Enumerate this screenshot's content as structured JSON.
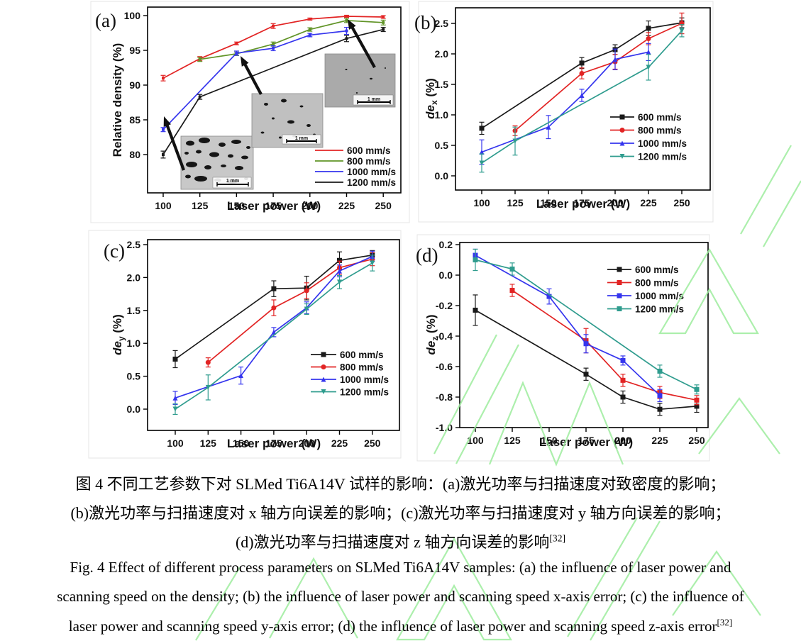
{
  "figure": {
    "captions_zh": [
      "图 4 不同工艺参数下对 SLMed Ti6A14V 试样的影响：(a)激光功率与扫描速度对致密度的影响；",
      "(b)激光功率与扫描速度对 x 轴方向误差的影响；(c)激光功率与扫描速度对 y 轴方向误差的影响；",
      "(d)激光功率与扫描速度对 z 轴方向误差的影响"
    ],
    "captions_en": [
      "Fig. 4 Effect of different process parameters on SLMed Ti6A14V samples: (a) the influence of laser power and",
      "scanning speed on the density; (b) the influence of laser power and scanning speed x-axis error; (c) the influence of",
      "laser power and scanning speed y-axis error; (d) the influence of laser power and scanning speed z-axis error"
    ],
    "caption_ref": "[32]"
  },
  "chart_data": [
    {
      "id": "a",
      "panel_label": "(a)",
      "type": "line",
      "xlabel": "Laser power (W)",
      "ylabel": "Relative density (%)",
      "xlim": [
        89,
        262
      ],
      "ylim": [
        74.5,
        101.2
      ],
      "xticks": [
        100,
        125,
        150,
        175,
        200,
        225,
        250
      ],
      "xtick_labels": [
        "100",
        "125",
        "150",
        "175",
        "200",
        "225",
        "250"
      ],
      "yticks": [
        80,
        85,
        90,
        95,
        100
      ],
      "ytick_labels": [
        "80",
        "85",
        "90",
        "95",
        "100"
      ],
      "legend_position": "bottom-right",
      "grid": false,
      "insets": [
        {
          "scale_label": "1 mm"
        },
        {
          "scale_label": "1 mm"
        },
        {
          "scale_label": "1 mm"
        }
      ],
      "series": [
        {
          "name": "600 mm/s",
          "color": "#e22424",
          "marker": "square",
          "x": [
            100,
            125,
            150,
            175,
            200,
            225,
            250
          ],
          "y": [
            91.0,
            93.8,
            96.0,
            98.5,
            99.5,
            99.9,
            99.8
          ],
          "err": [
            0.4,
            0.3,
            0.2,
            0.35,
            0.15,
            0.15,
            0.2
          ]
        },
        {
          "name": "800 mm/s",
          "color": "#619427",
          "marker": "square",
          "x": [
            125,
            150,
            175,
            200,
            225,
            250
          ],
          "y": [
            93.7,
            94.5,
            95.9,
            98.0,
            99.3,
            99.0
          ],
          "err": [
            0.3,
            0.25,
            0.3,
            0.25,
            0.3,
            0.35
          ]
        },
        {
          "name": "1000 mm/s",
          "color": "#3535ee",
          "marker": "square",
          "x": [
            100,
            150,
            175,
            200,
            225
          ],
          "y": [
            83.6,
            94.6,
            95.3,
            97.2,
            97.8
          ],
          "err": [
            0.3,
            0.3,
            0.35,
            0.25,
            0.5
          ]
        },
        {
          "name": "1200 mm/s",
          "color": "#1a1a1a",
          "marker": "square",
          "x": [
            100,
            125,
            225,
            250
          ],
          "y": [
            80.0,
            88.3,
            96.7,
            98.0
          ],
          "err": [
            0.5,
            0.35,
            0.45,
            0.3
          ]
        }
      ]
    },
    {
      "id": "b",
      "panel_label": "(b)",
      "type": "line",
      "xlabel": "Laser power (W)",
      "ylabel": {
        "italic": "de",
        "sub": "x",
        "rest": " (%)"
      },
      "xlim": [
        80,
        271
      ],
      "ylim": [
        -0.23,
        2.76
      ],
      "xticks": [
        100,
        125,
        150,
        175,
        200,
        225,
        250
      ],
      "xtick_labels": [
        "100",
        "125",
        "150",
        "175",
        "200",
        "225",
        "250"
      ],
      "yticks": [
        0.0,
        0.5,
        1.0,
        1.5,
        2.0,
        2.5
      ],
      "ytick_labels": [
        "0.0",
        "0.5",
        "1.0",
        "1.5",
        "2.0",
        "2.5"
      ],
      "legend_position": "middle-right",
      "grid": false,
      "series": [
        {
          "name": "600 mm/s",
          "color": "#1a1a1a",
          "marker": "square",
          "x": [
            100,
            175,
            200,
            225,
            250
          ],
          "y": [
            0.78,
            1.85,
            2.07,
            2.42,
            2.51
          ],
          "err": [
            0.1,
            0.09,
            0.08,
            0.12,
            0.08
          ]
        },
        {
          "name": "800 mm/s",
          "color": "#e22424",
          "marker": "circle",
          "x": [
            125,
            175,
            200,
            225,
            250
          ],
          "y": [
            0.74,
            1.68,
            1.87,
            2.25,
            2.5
          ],
          "err": [
            0.08,
            0.09,
            0.12,
            0.1,
            0.17
          ]
        },
        {
          "name": "1000 mm/s",
          "color": "#3535ee",
          "marker": "triangle-up",
          "x": [
            100,
            150,
            175,
            200,
            225
          ],
          "y": [
            0.39,
            0.8,
            1.32,
            1.91,
            2.03
          ],
          "err": [
            0.2,
            0.19,
            0.1,
            0.17,
            0.14
          ]
        },
        {
          "name": "1200 mm/s",
          "color": "#2f9c8e",
          "marker": "triangle-down",
          "x": [
            100,
            125,
            225,
            250
          ],
          "y": [
            0.21,
            0.57,
            1.78,
            2.38
          ],
          "err": [
            0.15,
            0.23,
            0.21,
            0.1
          ]
        }
      ]
    },
    {
      "id": "c",
      "panel_label": "(c)",
      "type": "line",
      "xlabel": "Laser power (W)",
      "ylabel": {
        "italic": "de",
        "sub": "y",
        "rest": " (%)"
      },
      "xlim": [
        79,
        271
      ],
      "ylim": [
        -0.32,
        2.58
      ],
      "xticks": [
        100,
        125,
        150,
        175,
        200,
        225,
        250
      ],
      "xtick_labels": [
        "100",
        "125",
        "150",
        "175",
        "200",
        "225",
        "250"
      ],
      "yticks": [
        0.0,
        0.5,
        1.0,
        1.5,
        2.0,
        2.5
      ],
      "ytick_labels": [
        "0.0",
        "0.5",
        "1.0",
        "1.5",
        "2.0",
        "2.5"
      ],
      "legend_position": "middle-right",
      "grid": false,
      "series": [
        {
          "name": "600 mm/s",
          "color": "#1a1a1a",
          "marker": "square",
          "x": [
            100,
            175,
            200,
            225,
            250
          ],
          "y": [
            0.76,
            1.83,
            1.84,
            2.26,
            2.34
          ],
          "err": [
            0.13,
            0.12,
            0.18,
            0.13,
            0.07
          ]
        },
        {
          "name": "800 mm/s",
          "color": "#e22424",
          "marker": "circle",
          "x": [
            125,
            175,
            200,
            225,
            250
          ],
          "y": [
            0.71,
            1.54,
            1.8,
            2.15,
            2.28
          ],
          "err": [
            0.07,
            0.12,
            0.12,
            0.1,
            0.1
          ]
        },
        {
          "name": "1000 mm/s",
          "color": "#3535ee",
          "marker": "triangle-up",
          "x": [
            100,
            150,
            175,
            200,
            225,
            250
          ],
          "y": [
            0.17,
            0.51,
            1.17,
            1.54,
            2.1,
            2.32
          ],
          "err": [
            0.1,
            0.13,
            0.07,
            0.09,
            0.09,
            0.08
          ]
        },
        {
          "name": "1200 mm/s",
          "color": "#2f9c8e",
          "marker": "triangle-down",
          "x": [
            100,
            125,
            200,
            225,
            250
          ],
          "y": [
            0.0,
            0.33,
            1.52,
            1.93,
            2.22
          ],
          "err": [
            0.08,
            0.19,
            0.08,
            0.1,
            0.12
          ]
        }
      ]
    },
    {
      "id": "d",
      "panel_label": "(d)",
      "type": "line",
      "xlabel": "Laser power (W)",
      "ylabel": {
        "italic": "de",
        "sub": "z",
        "rest": " (%)"
      },
      "xlim": [
        89,
        258
      ],
      "ylim": [
        -1.0,
        0.21
      ],
      "xticks": [
        100,
        125,
        150,
        175,
        200,
        225,
        250
      ],
      "xtick_labels": [
        "100",
        "125",
        "150",
        "175",
        "200",
        "225",
        "250"
      ],
      "yticks": [
        0.2,
        0.0,
        -0.2,
        -0.4,
        -0.6,
        -0.8,
        -1.0
      ],
      "ytick_labels": [
        "0.2",
        "0.0",
        "-0.2",
        "-0.4",
        "-0.6",
        "-0.8",
        "-1.0"
      ],
      "legend_position": "top-right",
      "grid": false,
      "series": [
        {
          "name": "600 mm/s",
          "color": "#1a1a1a",
          "marker": "square",
          "x": [
            100,
            175,
            200,
            225,
            250
          ],
          "y": [
            -0.23,
            -0.65,
            -0.8,
            -0.88,
            -0.86
          ],
          "err": [
            0.1,
            0.04,
            0.04,
            0.04,
            0.04
          ]
        },
        {
          "name": "800 mm/s",
          "color": "#e22424",
          "marker": "square",
          "x": [
            125,
            175,
            200,
            225,
            250
          ],
          "y": [
            -0.1,
            -0.43,
            -0.69,
            -0.77,
            -0.82
          ],
          "err": [
            0.04,
            0.08,
            0.04,
            0.04,
            0.03
          ]
        },
        {
          "name": "1000 mm/s",
          "color": "#3535ee",
          "marker": "square",
          "x": [
            100,
            150,
            175,
            200,
            225
          ],
          "y": [
            0.13,
            -0.14,
            -0.45,
            -0.56,
            -0.79
          ],
          "err": [
            0.04,
            0.05,
            0.06,
            0.03,
            0.04
          ]
        },
        {
          "name": "1200 mm/s",
          "color": "#2f9c8e",
          "marker": "square",
          "x": [
            100,
            125,
            225,
            250
          ],
          "y": [
            0.1,
            0.04,
            -0.63,
            -0.75
          ],
          "err": [
            0.07,
            0.04,
            0.04,
            0.03
          ]
        }
      ]
    }
  ]
}
